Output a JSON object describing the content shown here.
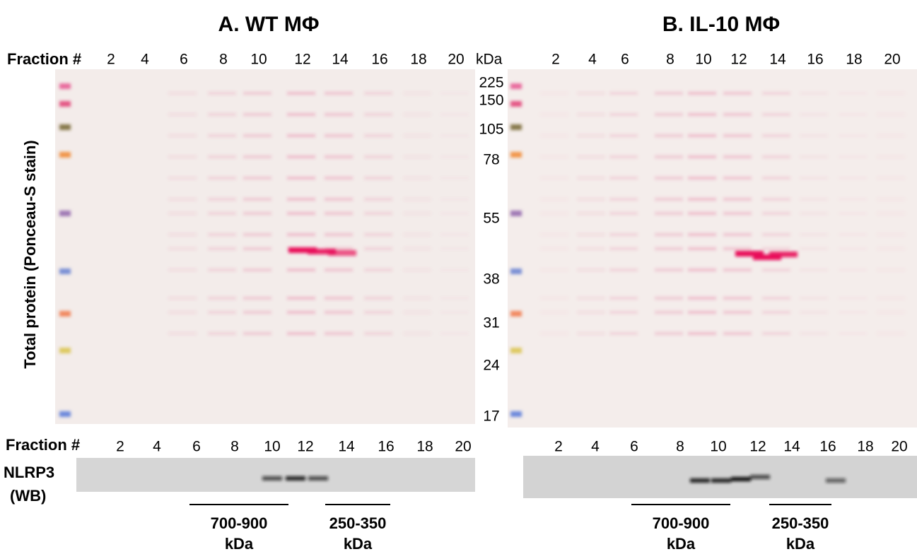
{
  "y_label": "Total protein (Ponceau-S stain)",
  "wb_label": [
    "NLRP3",
    "(WB)"
  ],
  "markers": {
    "unit": "kDa",
    "values": [
      "225",
      "150",
      "105",
      "78",
      "55",
      "38",
      "31",
      "24",
      "17"
    ]
  },
  "panels": [
    {
      "title": "A. WT MΦ",
      "fraction_label": "Fraction #",
      "fractions": [
        "2",
        "4",
        "6",
        "8",
        "10",
        "12",
        "14",
        "16",
        "18",
        "20"
      ],
      "wb_fraction_label": "Fraction #",
      "wb_fractions": [
        "2",
        "4",
        "6",
        "8",
        "10",
        "12",
        "14",
        "16",
        "18",
        "20"
      ],
      "size_ranges": [
        {
          "label": "700-900",
          "unit": "kDa"
        },
        {
          "label": "250-350",
          "unit": "kDa"
        }
      ]
    },
    {
      "title": "B. IL-10 MΦ",
      "fractions": [
        "2",
        "4",
        "6",
        "8",
        "10",
        "12",
        "14",
        "16",
        "18",
        "20"
      ],
      "wb_fractions": [
        "2",
        "4",
        "6",
        "8",
        "10",
        "12",
        "14",
        "16",
        "18",
        "20"
      ],
      "size_ranges": [
        {
          "label": "700-900",
          "unit": "kDa"
        },
        {
          "label": "250-350",
          "unit": "kDa"
        }
      ]
    }
  ]
}
